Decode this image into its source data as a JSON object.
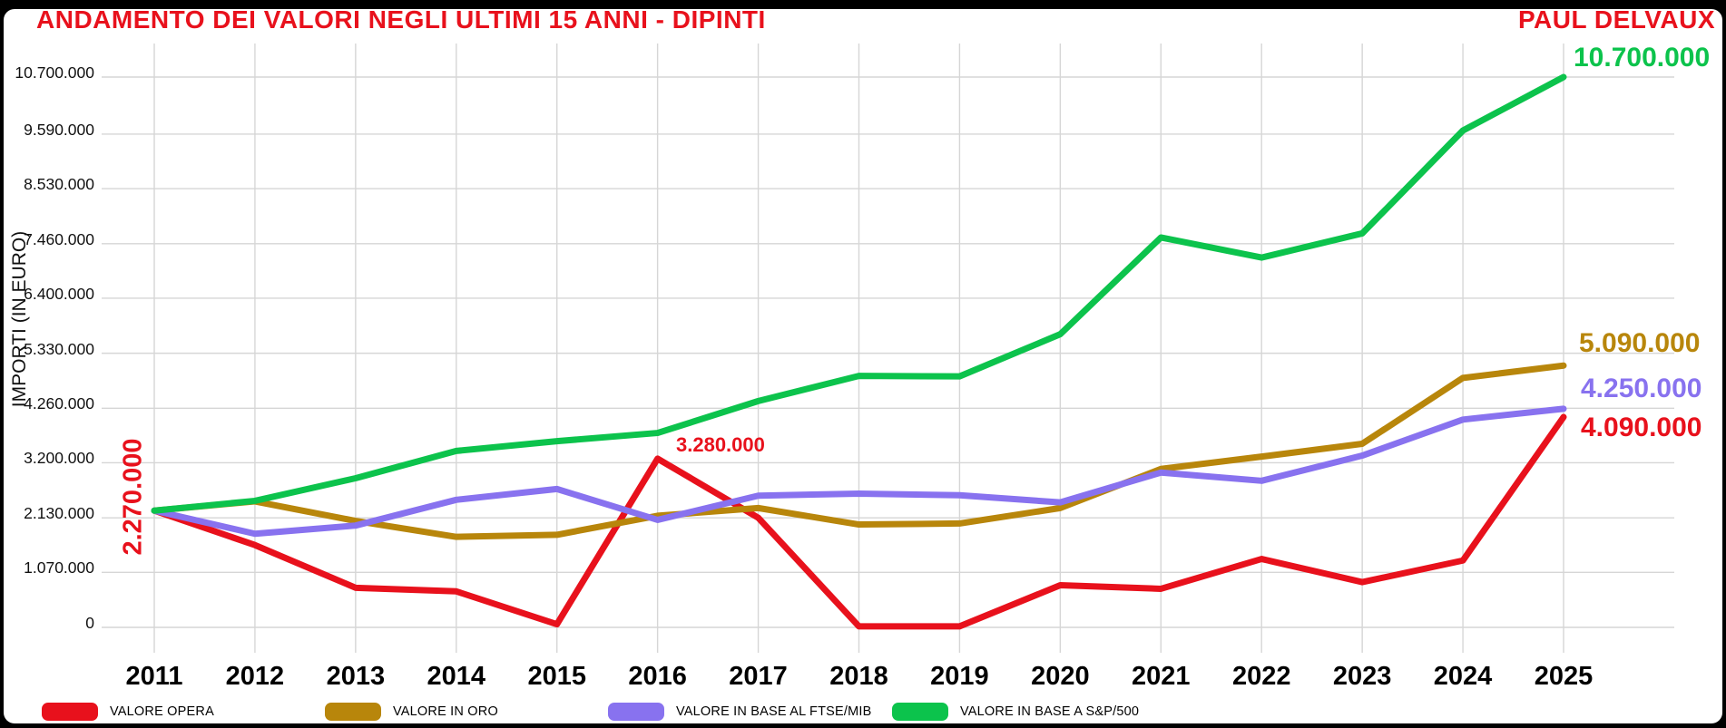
{
  "header": {
    "title": "ANDAMENTO DEI VALORI NEGLI ULTIMI 15 ANNI - DIPINTI",
    "artist": "PAUL DELVAUX",
    "accent_color": "#e8111c"
  },
  "y_axis": {
    "title": "IMPORTI (IN EURO)",
    "ticks": [
      {
        "label": "0",
        "value": 0
      },
      {
        "label": "1.070.000",
        "value": 1070000
      },
      {
        "label": "2.130.000",
        "value": 2130000
      },
      {
        "label": "3.200.000",
        "value": 3200000
      },
      {
        "label": "4.260.000",
        "value": 4260000
      },
      {
        "label": "5.330.000",
        "value": 5330000
      },
      {
        "label": "6.400.000",
        "value": 6400000
      },
      {
        "label": "7.460.000",
        "value": 7460000
      },
      {
        "label": "8.530.000",
        "value": 8530000
      },
      {
        "label": "9.590.000",
        "value": 9590000
      },
      {
        "label": "10.700.000",
        "value": 10700000
      }
    ]
  },
  "chart_data": {
    "type": "line",
    "title": "ANDAMENTO DEI VALORI NEGLI ULTIMI 15 ANNI - DIPINTI",
    "xlabel": "",
    "ylabel": "IMPORTI (IN EURO)",
    "ylim": [
      0,
      10700000
    ],
    "grid": true,
    "legend_position": "bottom",
    "x": [
      "2011",
      "2012",
      "2013",
      "2014",
      "2015",
      "2016",
      "2017",
      "2018",
      "2019",
      "2020",
      "2021",
      "2022",
      "2023",
      "2024",
      "2025"
    ],
    "series": [
      {
        "name": "VALORE OPERA",
        "color": "#e8111c",
        "values": [
          2270000,
          1600000,
          770000,
          700000,
          60000,
          3280000,
          2130000,
          20000,
          20000,
          820000,
          750000,
          1330000,
          880000,
          1300000,
          4090000
        ]
      },
      {
        "name": "VALORE IN ORO",
        "color": "#b8860b",
        "values": [
          2270000,
          2450000,
          2070000,
          1760000,
          1800000,
          2170000,
          2320000,
          2000000,
          2020000,
          2320000,
          3080000,
          3320000,
          3570000,
          4850000,
          5090000
        ]
      },
      {
        "name": "VALORE IN BASE AL FTSE/MIB",
        "color": "#8872ef",
        "values": [
          2270000,
          1820000,
          1980000,
          2480000,
          2690000,
          2090000,
          2560000,
          2600000,
          2570000,
          2430000,
          3010000,
          2850000,
          3340000,
          4040000,
          4250000
        ]
      },
      {
        "name": "VALORE IN BASE A S&P/500",
        "color": "#0cc34c",
        "values": [
          2270000,
          2460000,
          2900000,
          3430000,
          3620000,
          3780000,
          4400000,
          4890000,
          4880000,
          5700000,
          7580000,
          7190000,
          7660000,
          9660000,
          10700000
        ]
      }
    ]
  },
  "annotations": {
    "start": {
      "text": "2.270.000",
      "color": "#e8111c"
    },
    "peak2016": {
      "text": "3.280.000",
      "color": "#e8111c"
    },
    "end_sp500": {
      "text": "10.700.000",
      "color": "#0cc34c"
    },
    "end_oro": {
      "text": "5.090.000",
      "color": "#b8860b"
    },
    "end_ftse": {
      "text": "4.250.000",
      "color": "#8872ef"
    },
    "end_opera": {
      "text": "4.090.000",
      "color": "#e8111c"
    }
  },
  "colors": {
    "grid": "#d6d6d6",
    "background": "#ffffff",
    "frame": "#000000"
  }
}
